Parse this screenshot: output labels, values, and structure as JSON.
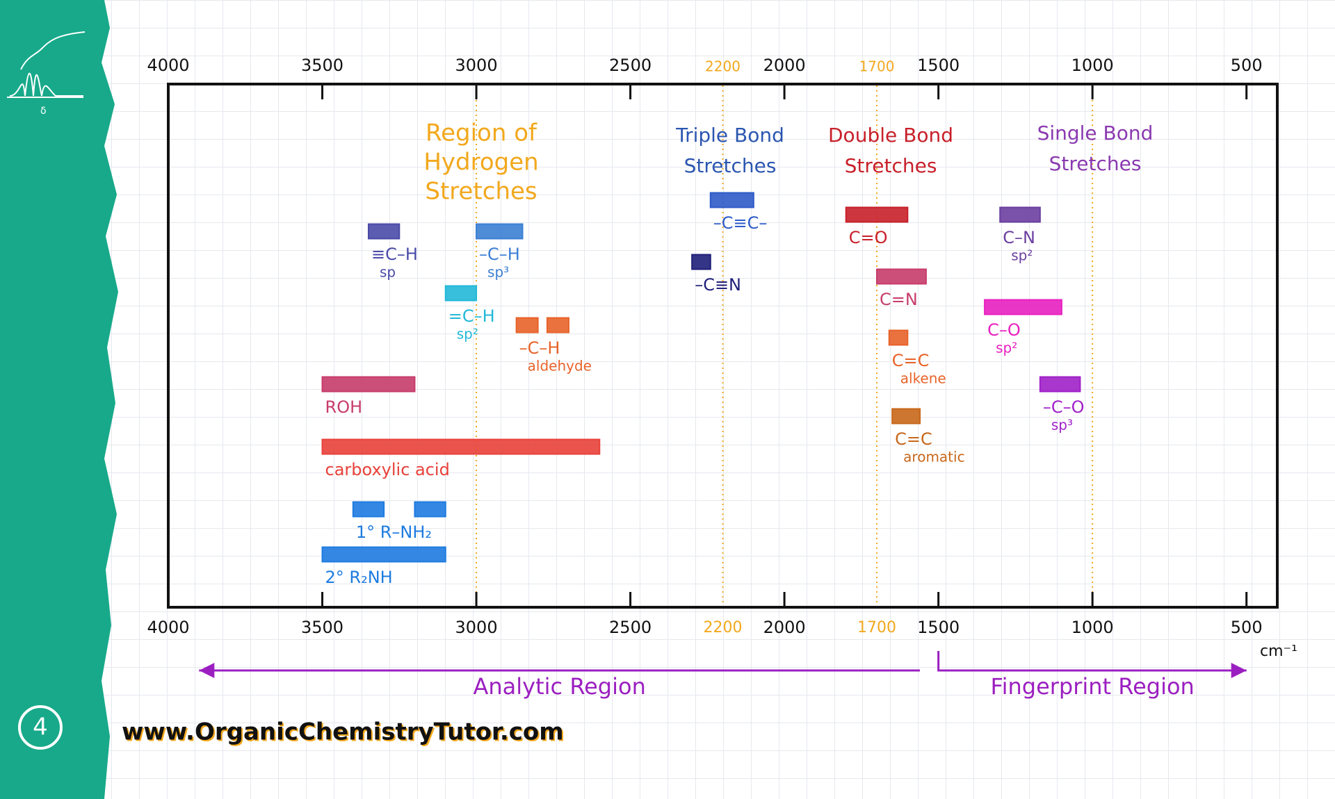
{
  "chart_data": {
    "type": "range",
    "xlim": [
      4000,
      400
    ],
    "xticks": [
      4000,
      3500,
      3000,
      2500,
      2000,
      1500,
      1000,
      500
    ],
    "highlight_ticks": [
      2200,
      1700
    ],
    "highlight_color": "#f2a81d",
    "guide_lines": [
      3000,
      2200,
      1700,
      1000
    ],
    "x_unit": "cm⁻¹",
    "regions": [
      {
        "lines": [
          "Region of",
          "Hydrogen",
          "Stretches"
        ],
        "color": "#f2a81d"
      },
      {
        "lines": [
          "Triple Bond",
          "Stretches"
        ],
        "color": "#2b56b0"
      },
      {
        "lines": [
          "Double Bond",
          "Stretches"
        ],
        "color": "#c8202a"
      },
      {
        "lines": [
          "Single Bond",
          "Stretches"
        ],
        "color": "#8a3ab0"
      }
    ],
    "items": [
      {
        "label": "≡C–H",
        "note": "sp",
        "color": "#4a4aa8",
        "ranges": [
          [
            3350,
            3250
          ]
        ]
      },
      {
        "label": "–C–H",
        "note": "sp³",
        "color": "#3b7fd4",
        "ranges": [
          [
            3000,
            2850
          ]
        ]
      },
      {
        "label": "=C–H",
        "note": "sp²",
        "color": "#22b8d8",
        "ranges": [
          [
            3100,
            3000
          ]
        ]
      },
      {
        "label": "–C–H",
        "note": "aldehyde",
        "color": "#e8632a",
        "ranges": [
          [
            2870,
            2800
          ],
          [
            2770,
            2700
          ]
        ]
      },
      {
        "label": "ROH",
        "color": "#c73c6a",
        "ranges": [
          [
            3500,
            3200
          ]
        ]
      },
      {
        "label": "carboxylic acid",
        "color": "#e8413a",
        "ranges": [
          [
            3500,
            2600
          ]
        ]
      },
      {
        "label": "1° R–NH₂",
        "color": "#1e7be0",
        "ranges": [
          [
            3400,
            3300
          ],
          [
            3200,
            3100
          ]
        ]
      },
      {
        "label": "2° R₂NH",
        "color": "#1e7be0",
        "ranges": [
          [
            3500,
            3100
          ]
        ]
      },
      {
        "label": "–C≡C–",
        "color": "#2d5bc8",
        "ranges": [
          [
            2240,
            2100
          ]
        ]
      },
      {
        "label": "–C≡N",
        "color": "#1f1f7a",
        "ranges": [
          [
            2300,
            2240
          ]
        ]
      },
      {
        "label": "C=O",
        "color": "#c8202a",
        "ranges": [
          [
            1800,
            1600
          ]
        ]
      },
      {
        "label": "C=N",
        "color": "#c73c6a",
        "ranges": [
          [
            1700,
            1540
          ]
        ]
      },
      {
        "label": "C=C",
        "note": "alkene",
        "color": "#e8632a",
        "ranges": [
          [
            1660,
            1600
          ]
        ]
      },
      {
        "label": "C=C",
        "note": "aromatic",
        "color": "#c8671a",
        "ranges": [
          [
            1650,
            1560
          ]
        ]
      },
      {
        "label": "C–N",
        "note": "sp²",
        "color": "#6b3fa0",
        "ranges": [
          [
            1300,
            1170
          ]
        ]
      },
      {
        "label": "C–O",
        "note": "sp²",
        "color": "#e820c0",
        "ranges": [
          [
            1350,
            1100
          ]
        ]
      },
      {
        "label": "–C–O",
        "note": "sp³",
        "color": "#a020c8",
        "ranges": [
          [
            1170,
            1040
          ]
        ]
      }
    ],
    "bottom_regions": [
      {
        "label": "Analytic Region",
        "from": 3900,
        "to": 1560
      },
      {
        "label": "Fingerprint Region",
        "from": 1500,
        "to": 500
      }
    ],
    "bottom_color": "#9b1fc0",
    "website": "www.OrganicChemistryTutor.com",
    "page_number": "4"
  }
}
